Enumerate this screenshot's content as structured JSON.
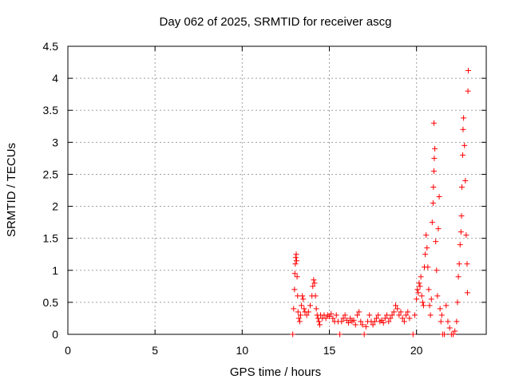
{
  "chart_data": {
    "type": "scatter",
    "title": "Day 062 of 2025, SRMTID for receiver ascg",
    "xlabel": "GPS time / hours",
    "ylabel": "SRMTID / TECUs",
    "xlim": [
      0,
      24
    ],
    "ylim": [
      0,
      4.5
    ],
    "xticks": [
      0,
      5,
      10,
      15,
      20
    ],
    "xtick_labels": [
      "0",
      "5",
      "10",
      "15",
      "20"
    ],
    "yticks": [
      0,
      0.5,
      1,
      1.5,
      2,
      2.5,
      3,
      3.5,
      4,
      4.5
    ],
    "ytick_labels": [
      "0",
      "0.5",
      "1",
      "1.5",
      "2",
      "2.5",
      "3",
      "3.5",
      "4",
      "4.5"
    ],
    "grid": true,
    "series": [
      {
        "name": "SRMTID",
        "marker": "+",
        "color": "#ff0000",
        "points": [
          [
            12.9,
            0.0
          ],
          [
            12.95,
            0.4
          ],
          [
            13.0,
            0.7
          ],
          [
            13.02,
            0.95
          ],
          [
            13.05,
            1.1
          ],
          [
            13.07,
            1.2
          ],
          [
            13.1,
            1.25
          ],
          [
            13.12,
            1.15
          ],
          [
            13.15,
            0.9
          ],
          [
            13.18,
            0.6
          ],
          [
            13.2,
            0.35
          ],
          [
            13.25,
            0.25
          ],
          [
            13.3,
            0.2
          ],
          [
            13.35,
            0.3
          ],
          [
            13.4,
            0.45
          ],
          [
            13.45,
            0.6
          ],
          [
            13.5,
            0.55
          ],
          [
            13.55,
            0.4
          ],
          [
            13.6,
            0.35
          ],
          [
            13.7,
            0.3
          ],
          [
            13.8,
            0.35
          ],
          [
            13.9,
            0.45
          ],
          [
            14.0,
            0.6
          ],
          [
            14.05,
            0.75
          ],
          [
            14.1,
            0.85
          ],
          [
            14.15,
            0.8
          ],
          [
            14.2,
            0.6
          ],
          [
            14.25,
            0.4
          ],
          [
            14.3,
            0.3
          ],
          [
            14.35,
            0.25
          ],
          [
            14.4,
            0.2
          ],
          [
            14.45,
            0.15
          ],
          [
            14.5,
            0.3
          ],
          [
            14.6,
            0.25
          ],
          [
            14.7,
            0.3
          ],
          [
            14.8,
            0.25
          ],
          [
            14.9,
            0.3
          ],
          [
            15.0,
            0.28
          ],
          [
            15.1,
            0.32
          ],
          [
            15.2,
            0.25
          ],
          [
            15.3,
            0.2
          ],
          [
            15.4,
            0.3
          ],
          [
            15.5,
            0.2
          ],
          [
            15.6,
            0.0
          ],
          [
            15.7,
            0.2
          ],
          [
            15.8,
            0.25
          ],
          [
            15.9,
            0.3
          ],
          [
            16.0,
            0.22
          ],
          [
            16.1,
            0.18
          ],
          [
            16.2,
            0.25
          ],
          [
            16.3,
            0.2
          ],
          [
            16.4,
            0.22
          ],
          [
            16.5,
            0.15
          ],
          [
            16.6,
            0.3
          ],
          [
            16.7,
            0.35
          ],
          [
            16.8,
            0.2
          ],
          [
            16.9,
            0.15
          ],
          [
            17.0,
            0.0
          ],
          [
            17.1,
            0.12
          ],
          [
            17.2,
            0.2
          ],
          [
            17.3,
            0.3
          ],
          [
            17.4,
            0.2
          ],
          [
            17.5,
            0.15
          ],
          [
            17.6,
            0.2
          ],
          [
            17.7,
            0.25
          ],
          [
            17.8,
            0.3
          ],
          [
            17.9,
            0.2
          ],
          [
            18.0,
            0.22
          ],
          [
            18.1,
            0.18
          ],
          [
            18.2,
            0.25
          ],
          [
            18.3,
            0.3
          ],
          [
            18.4,
            0.2
          ],
          [
            18.5,
            0.25
          ],
          [
            18.6,
            0.3
          ],
          [
            18.7,
            0.35
          ],
          [
            18.8,
            0.45
          ],
          [
            18.9,
            0.4
          ],
          [
            19.0,
            0.3
          ],
          [
            19.1,
            0.35
          ],
          [
            19.2,
            0.25
          ],
          [
            19.3,
            0.2
          ],
          [
            19.4,
            0.3
          ],
          [
            19.5,
            0.35
          ],
          [
            19.6,
            0.25
          ],
          [
            19.8,
            0.0
          ],
          [
            19.9,
            0.3
          ],
          [
            20.0,
            0.55
          ],
          [
            20.05,
            0.7
          ],
          [
            20.1,
            0.65
          ],
          [
            20.15,
            0.8
          ],
          [
            20.2,
            0.75
          ],
          [
            20.25,
            0.9
          ],
          [
            20.3,
            0.6
          ],
          [
            20.35,
            0.5
          ],
          [
            20.4,
            0.45
          ],
          [
            20.45,
            1.05
          ],
          [
            20.5,
            1.25
          ],
          [
            20.55,
            1.55
          ],
          [
            20.6,
            1.35
          ],
          [
            20.65,
            1.05
          ],
          [
            20.7,
            0.7
          ],
          [
            20.75,
            0.45
          ],
          [
            20.8,
            0.3
          ],
          [
            20.85,
            0.55
          ],
          [
            20.9,
            1.75
          ],
          [
            20.95,
            2.05
          ],
          [
            20.97,
            2.3
          ],
          [
            21.0,
            2.55
          ],
          [
            21.02,
            2.75
          ],
          [
            21.05,
            2.9
          ],
          [
            21.0,
            3.3
          ],
          [
            21.1,
            1.45
          ],
          [
            21.15,
            1.0
          ],
          [
            21.2,
            0.6
          ],
          [
            21.25,
            1.65
          ],
          [
            21.3,
            2.15
          ],
          [
            21.35,
            0.4
          ],
          [
            21.4,
            0.2
          ],
          [
            21.45,
            0.3
          ],
          [
            21.5,
            0.0
          ],
          [
            21.6,
            0.0
          ],
          [
            21.7,
            0.45
          ],
          [
            21.8,
            0.2
          ],
          [
            21.9,
            0.1
          ],
          [
            22.0,
            0.0
          ],
          [
            22.1,
            0.0
          ],
          [
            22.2,
            0.05
          ],
          [
            22.3,
            0.2
          ],
          [
            22.35,
            0.5
          ],
          [
            22.4,
            0.9
          ],
          [
            22.45,
            1.1
          ],
          [
            22.5,
            1.4
          ],
          [
            22.55,
            1.6
          ],
          [
            22.58,
            1.85
          ],
          [
            22.6,
            2.3
          ],
          [
            22.65,
            2.8
          ],
          [
            22.67,
            3.2
          ],
          [
            22.7,
            3.38
          ],
          [
            22.75,
            2.95
          ],
          [
            22.8,
            2.4
          ],
          [
            22.85,
            1.55
          ],
          [
            22.9,
            1.1
          ],
          [
            22.92,
            0.65
          ],
          [
            22.95,
            3.8
          ],
          [
            22.97,
            4.12
          ]
        ]
      }
    ]
  }
}
